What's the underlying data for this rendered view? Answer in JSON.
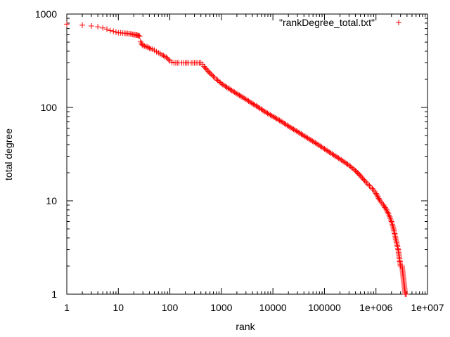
{
  "chart_data": {
    "type": "scatter",
    "title": "",
    "xlabel": "rank",
    "ylabel": "total degree",
    "x_scale": "log",
    "y_scale": "log",
    "xlim": [
      1,
      10000000
    ],
    "ylim": [
      1,
      1000
    ],
    "grid": false,
    "legend_position": "top-right",
    "x_tick_labels": [
      "1",
      "10",
      "100",
      "1000",
      "10000",
      "100000",
      "1e+006",
      "1e+007"
    ],
    "y_tick_labels": [
      "1",
      "10",
      "100",
      "1000"
    ],
    "marker": "+",
    "colors": {
      "series": "#ff0000",
      "axes": "#000000"
    },
    "series": [
      {
        "name": "\"rankDegree_total.txt\"",
        "points": [
          [
            1,
            780
          ],
          [
            2,
            760
          ],
          [
            3,
            745
          ],
          [
            4,
            730
          ],
          [
            5,
            710
          ],
          [
            6,
            690
          ],
          [
            7,
            665
          ],
          [
            8,
            655
          ],
          [
            9,
            640
          ],
          [
            10,
            630
          ],
          [
            11,
            630
          ],
          [
            12,
            625
          ],
          [
            13,
            625
          ],
          [
            14,
            620
          ],
          [
            15,
            620
          ],
          [
            16,
            615
          ],
          [
            17,
            615
          ],
          [
            18,
            610
          ],
          [
            19,
            605
          ],
          [
            20,
            600
          ],
          [
            21,
            600
          ],
          [
            22,
            595
          ],
          [
            23,
            595
          ],
          [
            24,
            590
          ],
          [
            25,
            585
          ],
          [
            26,
            580
          ],
          [
            27,
            510
          ],
          [
            28,
            490
          ],
          [
            29,
            470
          ],
          [
            30,
            460
          ],
          [
            32,
            455
          ],
          [
            34,
            450
          ],
          [
            36,
            445
          ],
          [
            38,
            440
          ],
          [
            40,
            430
          ],
          [
            43,
            425
          ],
          [
            46,
            420
          ],
          [
            50,
            410
          ],
          [
            55,
            395
          ],
          [
            60,
            385
          ],
          [
            65,
            375
          ],
          [
            70,
            365
          ],
          [
            75,
            360
          ],
          [
            80,
            350
          ],
          [
            85,
            345
          ],
          [
            90,
            335
          ],
          [
            95,
            325
          ],
          [
            100,
            315
          ],
          [
            110,
            305
          ],
          [
            120,
            300
          ],
          [
            130,
            300
          ],
          [
            150,
            300
          ],
          [
            170,
            300
          ],
          [
            200,
            300
          ],
          [
            230,
            300
          ],
          [
            260,
            300
          ],
          [
            300,
            300
          ],
          [
            350,
            300
          ],
          [
            400,
            300
          ],
          [
            430,
            290
          ],
          [
            460,
            275
          ],
          [
            500,
            260
          ],
          [
            550,
            245
          ],
          [
            600,
            233
          ],
          [
            700,
            215
          ],
          [
            800,
            200
          ],
          [
            900,
            190
          ],
          [
            1000,
            180
          ],
          [
            1200,
            168
          ],
          [
            1500,
            155
          ],
          [
            2000,
            140
          ],
          [
            2500,
            130
          ],
          [
            3000,
            122
          ],
          [
            4000,
            110
          ],
          [
            5000,
            102
          ],
          [
            7000,
            90
          ],
          [
            10000,
            80
          ],
          [
            15000,
            70
          ],
          [
            20000,
            63
          ],
          [
            30000,
            55
          ],
          [
            50000,
            46
          ],
          [
            70000,
            41
          ],
          [
            100000,
            36
          ],
          [
            150000,
            31
          ],
          [
            200000,
            28
          ],
          [
            300000,
            24
          ],
          [
            400000,
            21
          ],
          [
            500000,
            18.5
          ],
          [
            600000,
            16.5
          ],
          [
            700000,
            15
          ],
          [
            800000,
            14
          ],
          [
            900000,
            13
          ],
          [
            1000000,
            12
          ],
          [
            1200000,
            10
          ],
          [
            1400000,
            9
          ],
          [
            1600000,
            8
          ],
          [
            1800000,
            7
          ],
          [
            2000000,
            6
          ],
          [
            2200000,
            5
          ],
          [
            2400000,
            4
          ],
          [
            2700000,
            3
          ],
          [
            3000000,
            2
          ],
          [
            3200000,
            2
          ],
          [
            3700000,
            1
          ],
          [
            3900000,
            1
          ]
        ]
      }
    ]
  }
}
